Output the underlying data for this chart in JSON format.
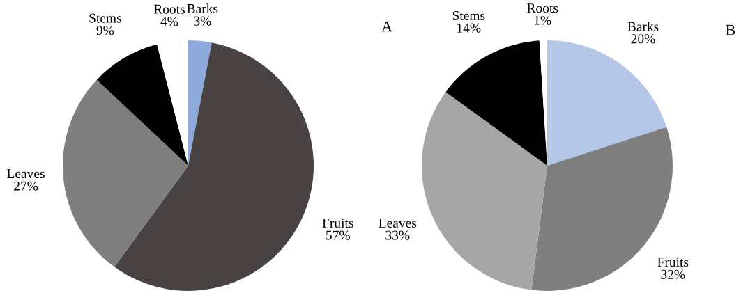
{
  "chart_data": [
    {
      "type": "pie",
      "title": "A",
      "categories": [
        "Barks",
        "Fruits",
        "Leaves",
        "Stems",
        "Roots"
      ],
      "values": [
        3,
        57,
        27,
        9,
        4
      ],
      "colors": [
        "#8eaadb",
        "#484243",
        "#7f7f7f",
        "#000000",
        "#ffffff"
      ],
      "value_labels": [
        "3%",
        "57%",
        "27%",
        "9%",
        "4%"
      ]
    },
    {
      "type": "pie",
      "title": "B",
      "categories": [
        "Barks",
        "Fruits",
        "Leaves",
        "Stems",
        "Roots"
      ],
      "values": [
        20,
        32,
        33,
        14,
        1
      ],
      "colors": [
        "#b4c7e7",
        "#7f7f7f",
        "#a6a6a6",
        "#000000",
        "#ffffff"
      ],
      "value_labels": [
        "20%",
        "32%",
        "33%",
        "14%",
        "1%"
      ]
    }
  ]
}
